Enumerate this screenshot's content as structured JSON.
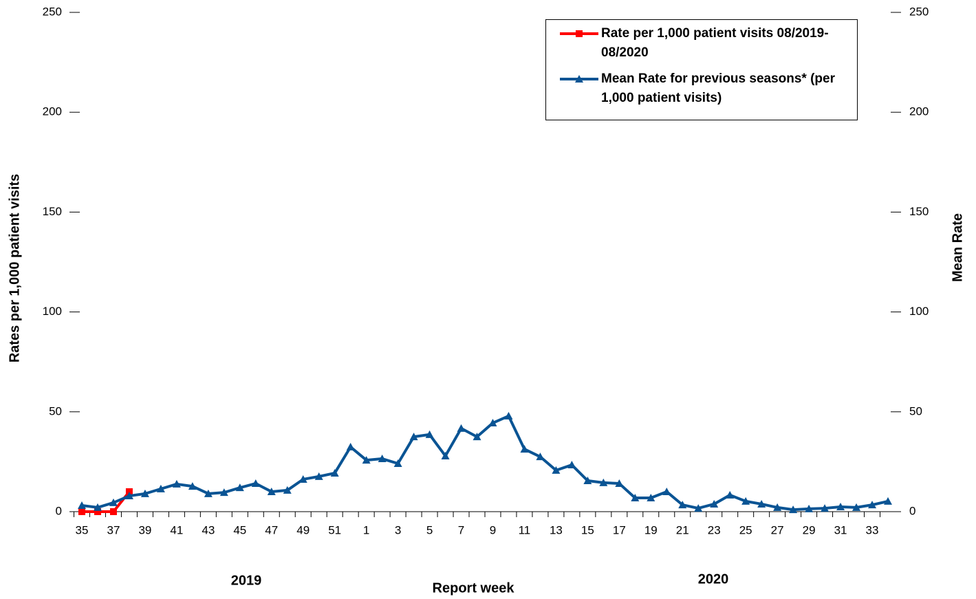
{
  "chart_data": {
    "type": "line",
    "categories": [
      "35",
      null,
      "37",
      null,
      "39",
      null,
      "41",
      null,
      "43",
      null,
      "45",
      null,
      "47",
      null,
      "49",
      null,
      "51",
      null,
      "1",
      null,
      "3",
      null,
      "5",
      null,
      "7",
      null,
      "9",
      null,
      "11",
      null,
      "13",
      null,
      "15",
      null,
      "17",
      null,
      "19",
      null,
      "21",
      null,
      "23",
      null,
      "25",
      null,
      "27",
      null,
      "29",
      null,
      "31",
      null,
      "33",
      null
    ],
    "series": [
      {
        "name": "Rate per 1,000 patient visits 08/2019-08/2020",
        "color": "#ff0000",
        "marker": "square",
        "values": [
          0,
          0,
          0,
          10,
          null,
          null,
          null,
          null,
          null,
          null,
          null,
          null,
          null,
          null,
          null,
          null,
          null,
          null,
          null,
          null,
          null,
          null,
          null,
          null,
          null,
          null,
          null,
          null,
          null,
          null,
          null,
          null,
          null,
          null,
          null,
          null,
          null,
          null,
          null,
          null,
          null,
          null,
          null,
          null,
          null,
          null,
          null,
          null,
          null,
          null,
          null,
          null
        ]
      },
      {
        "name": "Mean Rate for previous seasons* (per 1,000 patient visits)",
        "color": "#0a5494",
        "marker": "triangle",
        "axis": "y2",
        "values": [
          3.1,
          2.1,
          4.5,
          7.9,
          9,
          11.4,
          13.8,
          12.7,
          9,
          9.6,
          12,
          14.1,
          10,
          10.7,
          16.2,
          17.6,
          19.3,
          32.4,
          25.8,
          26.5,
          24.1,
          37.5,
          38.6,
          27.9,
          41.7,
          37.5,
          44.4,
          47.9,
          31.3,
          27.5,
          20.7,
          23.4,
          15.5,
          14.5,
          14.1,
          6.9,
          6.9,
          10,
          3.4,
          1.7,
          3.8,
          8.3,
          5.2,
          3.8,
          2.1,
          1,
          1.4,
          1.7,
          2.4,
          2.1,
          3.4,
          5.2
        ]
      }
    ],
    "ylim": [
      0,
      250
    ],
    "yticks": [
      0,
      50,
      100,
      150,
      200,
      250
    ],
    "y2lim": [
      0,
      250
    ],
    "y2ticks": [
      0,
      50,
      100,
      150,
      200,
      250
    ],
    "x_label": "Report week",
    "y_label": "Rates per 1,000 patient visits",
    "y2_label": "Mean Rate",
    "annotations": [
      "2019",
      "2020"
    ],
    "legend": "upper right"
  }
}
